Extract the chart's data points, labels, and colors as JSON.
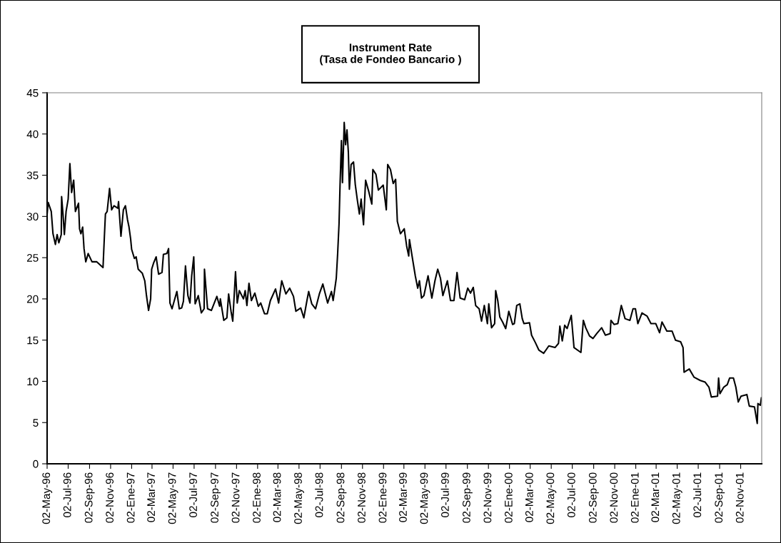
{
  "chart_data": {
    "type": "line",
    "title": "Instrument Rate\n(Tasa de Fondeo Bancario )",
    "xlim": [
      "1996-05-02",
      "2002-01-02"
    ],
    "ylim": [
      0,
      45
    ],
    "yticks": [
      0,
      5,
      10,
      15,
      20,
      25,
      30,
      35,
      40,
      45
    ],
    "xticks": [
      {
        "value": "1996-05-02",
        "label": "02-May-96"
      },
      {
        "value": "1996-07-02",
        "label": "02-Jul-96"
      },
      {
        "value": "1996-09-02",
        "label": "02-Sep-96"
      },
      {
        "value": "1996-11-02",
        "label": "02-Nov-96"
      },
      {
        "value": "1997-01-02",
        "label": "02-Ene-97"
      },
      {
        "value": "1997-03-02",
        "label": "02-Mar-97"
      },
      {
        "value": "1997-05-02",
        "label": "02-May-97"
      },
      {
        "value": "1997-07-02",
        "label": "02-Jul-97"
      },
      {
        "value": "1997-09-02",
        "label": "02-Sep-97"
      },
      {
        "value": "1997-11-02",
        "label": "02-Nov-97"
      },
      {
        "value": "1998-01-02",
        "label": "02-Ene-98"
      },
      {
        "value": "1998-03-02",
        "label": "02-Mar-98"
      },
      {
        "value": "1998-05-02",
        "label": "02-May-98"
      },
      {
        "value": "1998-07-02",
        "label": "02-Jul-98"
      },
      {
        "value": "1998-09-02",
        "label": "02-Sep-98"
      },
      {
        "value": "1998-11-02",
        "label": "02-Nov-98"
      },
      {
        "value": "1999-01-02",
        "label": "02-Ene-99"
      },
      {
        "value": "1999-03-02",
        "label": "02-Mar-99"
      },
      {
        "value": "1999-05-02",
        "label": "02-May-99"
      },
      {
        "value": "1999-07-02",
        "label": "02-Jul-99"
      },
      {
        "value": "1999-09-02",
        "label": "02-Sep-99"
      },
      {
        "value": "1999-11-02",
        "label": "02-Nov-99"
      },
      {
        "value": "2000-01-02",
        "label": "02-Ene-00"
      },
      {
        "value": "2000-03-02",
        "label": "02-Mar-00"
      },
      {
        "value": "2000-05-02",
        "label": "02-May-00"
      },
      {
        "value": "2000-07-02",
        "label": "02-Jul-00"
      },
      {
        "value": "2000-09-02",
        "label": "02-Sep-00"
      },
      {
        "value": "2000-11-02",
        "label": "02-Nov-00"
      },
      {
        "value": "2001-01-02",
        "label": "02-Ene-01"
      },
      {
        "value": "2001-03-02",
        "label": "02-Mar-01"
      },
      {
        "value": "2001-05-02",
        "label": "02-May-01"
      },
      {
        "value": "2001-07-02",
        "label": "02-Jul-01"
      },
      {
        "value": "2001-09-02",
        "label": "02-Sep-01"
      },
      {
        "value": "2001-11-02",
        "label": "02-Nov-01"
      }
    ],
    "grid": false,
    "legend": false,
    "marker": "none",
    "line_style": "solid",
    "series": [
      {
        "color": "#000000",
        "x": [
          "1996-05-02",
          "1996-05-05",
          "1996-05-14",
          "1996-05-19",
          "1996-05-26",
          "1996-05-31",
          "1996-06-05",
          "1996-06-12",
          "1996-06-13",
          "1996-06-17",
          "1996-06-21",
          "1996-06-26",
          "1996-07-02",
          "1996-07-07",
          "1996-07-12",
          "1996-07-18",
          "1996-07-23",
          "1996-08-01",
          "1996-08-04",
          "1996-08-08",
          "1996-08-13",
          "1996-08-17",
          "1996-08-22",
          "1996-08-29",
          "1996-09-09",
          "1996-09-23",
          "1996-10-11",
          "1996-10-15",
          "1996-10-18",
          "1996-10-23",
          "1996-10-30",
          "1996-11-05",
          "1996-11-12",
          "1996-11-23",
          "1996-11-25",
          "1996-12-02",
          "1996-12-09",
          "1996-12-15",
          "1996-12-21",
          "1996-12-25",
          "1996-12-30",
          "1997-01-02",
          "1997-01-10",
          "1997-01-15",
          "1997-01-21",
          "1997-02-02",
          "1997-02-09",
          "1997-02-14",
          "1997-02-20",
          "1997-02-26",
          "1997-03-01",
          "1997-03-07",
          "1997-03-14",
          "1997-03-21",
          "1997-03-31",
          "1997-04-04",
          "1997-04-14",
          "1997-04-19",
          "1997-04-23",
          "1997-04-29",
          "1997-05-13",
          "1997-05-20",
          "1997-05-27",
          "1997-06-01",
          "1997-06-07",
          "1997-06-14",
          "1997-06-20",
          "1997-06-25",
          "1997-07-01",
          "1997-07-05",
          "1997-07-14",
          "1997-07-23",
          "1997-07-31",
          "1997-08-01",
          "1997-08-10",
          "1997-08-21",
          "1997-09-06",
          "1997-09-14",
          "1997-09-16",
          "1997-09-26",
          "1997-10-05",
          "1997-10-10",
          "1997-10-17",
          "1997-10-22",
          "1997-10-30",
          "1997-11-04",
          "1997-11-10",
          "1997-11-22",
          "1997-11-27",
          "1997-12-02",
          "1997-12-08",
          "1997-12-15",
          "1997-12-25",
          "1998-01-04",
          "1998-01-11",
          "1998-01-22",
          "1998-01-30",
          "1998-02-08",
          "1998-02-23",
          "1998-03-04",
          "1998-03-13",
          "1998-03-25",
          "1998-04-05",
          "1998-04-16",
          "1998-04-23",
          "1998-05-07",
          "1998-05-16",
          "1998-05-25",
          "1998-05-30",
          "1998-06-08",
          "1998-06-19",
          "1998-06-30",
          "1998-07-10",
          "1998-07-24",
          "1998-08-04",
          "1998-08-09",
          "1998-08-18",
          "1998-08-22",
          "1998-08-26",
          "1998-08-29",
          "1998-09-02",
          "1998-09-05",
          "1998-09-10",
          "1998-09-14",
          "1998-09-18",
          "1998-09-22",
          "1998-09-25",
          "1998-09-30",
          "1998-10-07",
          "1998-10-12",
          "1998-10-18",
          "1998-10-24",
          "1998-10-29",
          "1998-11-05",
          "1998-11-11",
          "1998-11-19",
          "1998-11-29",
          "1998-12-02",
          "1998-12-11",
          "1998-12-18",
          "1999-01-01",
          "1999-01-10",
          "1999-01-14",
          "1999-01-22",
          "1999-01-30",
          "1999-02-06",
          "1999-02-11",
          "1999-02-20",
          "1999-03-03",
          "1999-03-10",
          "1999-03-16",
          "1999-03-18",
          "1999-03-28",
          "1999-04-04",
          "1999-04-11",
          "1999-04-16",
          "1999-04-22",
          "1999-04-29",
          "1999-05-11",
          "1999-05-22",
          "1999-05-31",
          "1999-06-08",
          "1999-06-16",
          "1999-06-23",
          "1999-07-06",
          "1999-07-15",
          "1999-07-25",
          "1999-08-03",
          "1999-08-12",
          "1999-08-25",
          "1999-09-03",
          "1999-09-11",
          "1999-09-19",
          "1999-09-26",
          "1999-10-06",
          "1999-10-13",
          "1999-10-21",
          "1999-10-30",
          "1999-11-03",
          "1999-11-11",
          "1999-11-20",
          "1999-11-23",
          "1999-11-29",
          "1999-12-05",
          "1999-12-13",
          "1999-12-22",
          "1999-12-31",
          "2000-01-11",
          "2000-01-16",
          "2000-01-23",
          "2000-02-01",
          "2000-02-08",
          "2000-02-13",
          "2000-02-29",
          "2000-03-06",
          "2000-03-17",
          "2000-03-27",
          "2000-04-10",
          "2000-04-25",
          "2000-05-13",
          "2000-05-23",
          "2000-05-27",
          "2000-06-03",
          "2000-06-10",
          "2000-06-17",
          "2000-06-29",
          "2000-07-07",
          "2000-07-27",
          "2000-08-03",
          "2000-08-10",
          "2000-08-21",
          "2000-08-31",
          "2000-09-11",
          "2000-09-25",
          "2000-10-06",
          "2000-10-20",
          "2000-10-22",
          "2000-10-31",
          "2000-11-11",
          "2000-11-21",
          "2000-12-02",
          "2000-12-16",
          "2000-12-25",
          "2001-01-01",
          "2001-01-08",
          "2001-01-20",
          "2001-02-04",
          "2001-02-15",
          "2001-03-01",
          "2001-03-12",
          "2001-03-19",
          "2001-04-02",
          "2001-04-17",
          "2001-04-27",
          "2001-05-12",
          "2001-05-19",
          "2001-05-22",
          "2001-06-06",
          "2001-06-20",
          "2001-07-08",
          "2001-07-22",
          "2001-08-02",
          "2001-08-09",
          "2001-08-27",
          "2001-08-30",
          "2001-09-03",
          "2001-09-14",
          "2001-09-24",
          "2001-10-01",
          "2001-10-12",
          "2001-10-19",
          "2001-10-26",
          "2001-11-03",
          "2001-11-20",
          "2001-11-27",
          "2001-12-12",
          "2001-12-20",
          "2001-12-22",
          "2001-12-29",
          "2002-01-01"
        ],
        "values": [
          30.3,
          31.7,
          30.6,
          27.9,
          26.6,
          27.8,
          26.8,
          27.8,
          32.4,
          30.3,
          27.8,
          30.6,
          32.1,
          36.4,
          32.9,
          34.4,
          30.6,
          31.6,
          28.5,
          27.9,
          28.7,
          26.1,
          24.5,
          25.5,
          24.5,
          24.5,
          23.8,
          27.6,
          30.3,
          30.6,
          33.4,
          30.8,
          31.3,
          31.0,
          31.8,
          27.6,
          30.8,
          31.3,
          29.6,
          28.8,
          27.3,
          26.0,
          24.9,
          25.1,
          23.6,
          23.1,
          22.2,
          20.4,
          18.6,
          20.0,
          23.6,
          24.4,
          25.1,
          23.0,
          23.2,
          25.4,
          25.5,
          26.1,
          19.5,
          18.8,
          20.9,
          18.8,
          18.9,
          19.7,
          24.0,
          20.4,
          19.5,
          22.8,
          25.1,
          19.4,
          20.4,
          18.3,
          18.8,
          23.6,
          18.8,
          18.6,
          20.3,
          19.1,
          20.0,
          17.4,
          17.7,
          20.6,
          18.5,
          17.3,
          23.3,
          19.5,
          21.0,
          20.0,
          21.0,
          19.2,
          21.9,
          19.8,
          20.7,
          19.1,
          19.5,
          18.2,
          18.2,
          19.8,
          21.2,
          19.5,
          22.2,
          20.6,
          21.3,
          20.3,
          18.5,
          18.9,
          17.7,
          19.8,
          20.9,
          19.4,
          18.8,
          20.6,
          21.8,
          19.5,
          20.9,
          19.8,
          22.5,
          25.5,
          29.1,
          33.9,
          39.2,
          34.1,
          41.4,
          38.7,
          40.5,
          37.8,
          33.3,
          36.3,
          36.6,
          33.9,
          32.0,
          30.3,
          32.1,
          29.0,
          34.4,
          33.2,
          31.5,
          35.7,
          35.1,
          33.2,
          33.8,
          30.8,
          36.3,
          35.7,
          34.0,
          34.5,
          29.4,
          27.9,
          28.5,
          26.4,
          25.2,
          27.2,
          24.6,
          22.8,
          21.3,
          22.2,
          20.1,
          20.4,
          22.8,
          20.1,
          22.2,
          23.6,
          22.5,
          20.4,
          22.2,
          19.8,
          19.8,
          23.2,
          20.1,
          19.9,
          21.3,
          20.7,
          21.4,
          19.2,
          18.8,
          17.3,
          19.2,
          17.0,
          19.4,
          16.5,
          17.0,
          21.0,
          19.8,
          17.8,
          17.2,
          16.4,
          18.5,
          16.9,
          17.0,
          19.2,
          19.4,
          17.6,
          17.0,
          17.1,
          15.6,
          14.7,
          13.8,
          13.4,
          14.3,
          14.1,
          14.6,
          16.7,
          14.9,
          16.8,
          16.4,
          18.0,
          14.1,
          13.5,
          17.4,
          16.5,
          15.5,
          15.2,
          15.8,
          16.5,
          15.6,
          15.8,
          17.4,
          16.9,
          17.0,
          19.2,
          17.6,
          17.4,
          18.8,
          18.8,
          17.0,
          18.3,
          17.9,
          17.0,
          17.0,
          15.9,
          17.2,
          16.1,
          16.1,
          15.0,
          14.8,
          14.1,
          11.1,
          11.5,
          10.5,
          10.1,
          9.9,
          9.3,
          8.1,
          8.2,
          10.4,
          8.5,
          9.3,
          9.6,
          10.4,
          10.4,
          9.3,
          7.5,
          8.2,
          8.4,
          7.0,
          6.9,
          4.9,
          7.3,
          7.1,
          8.0
        ]
      }
    ]
  }
}
